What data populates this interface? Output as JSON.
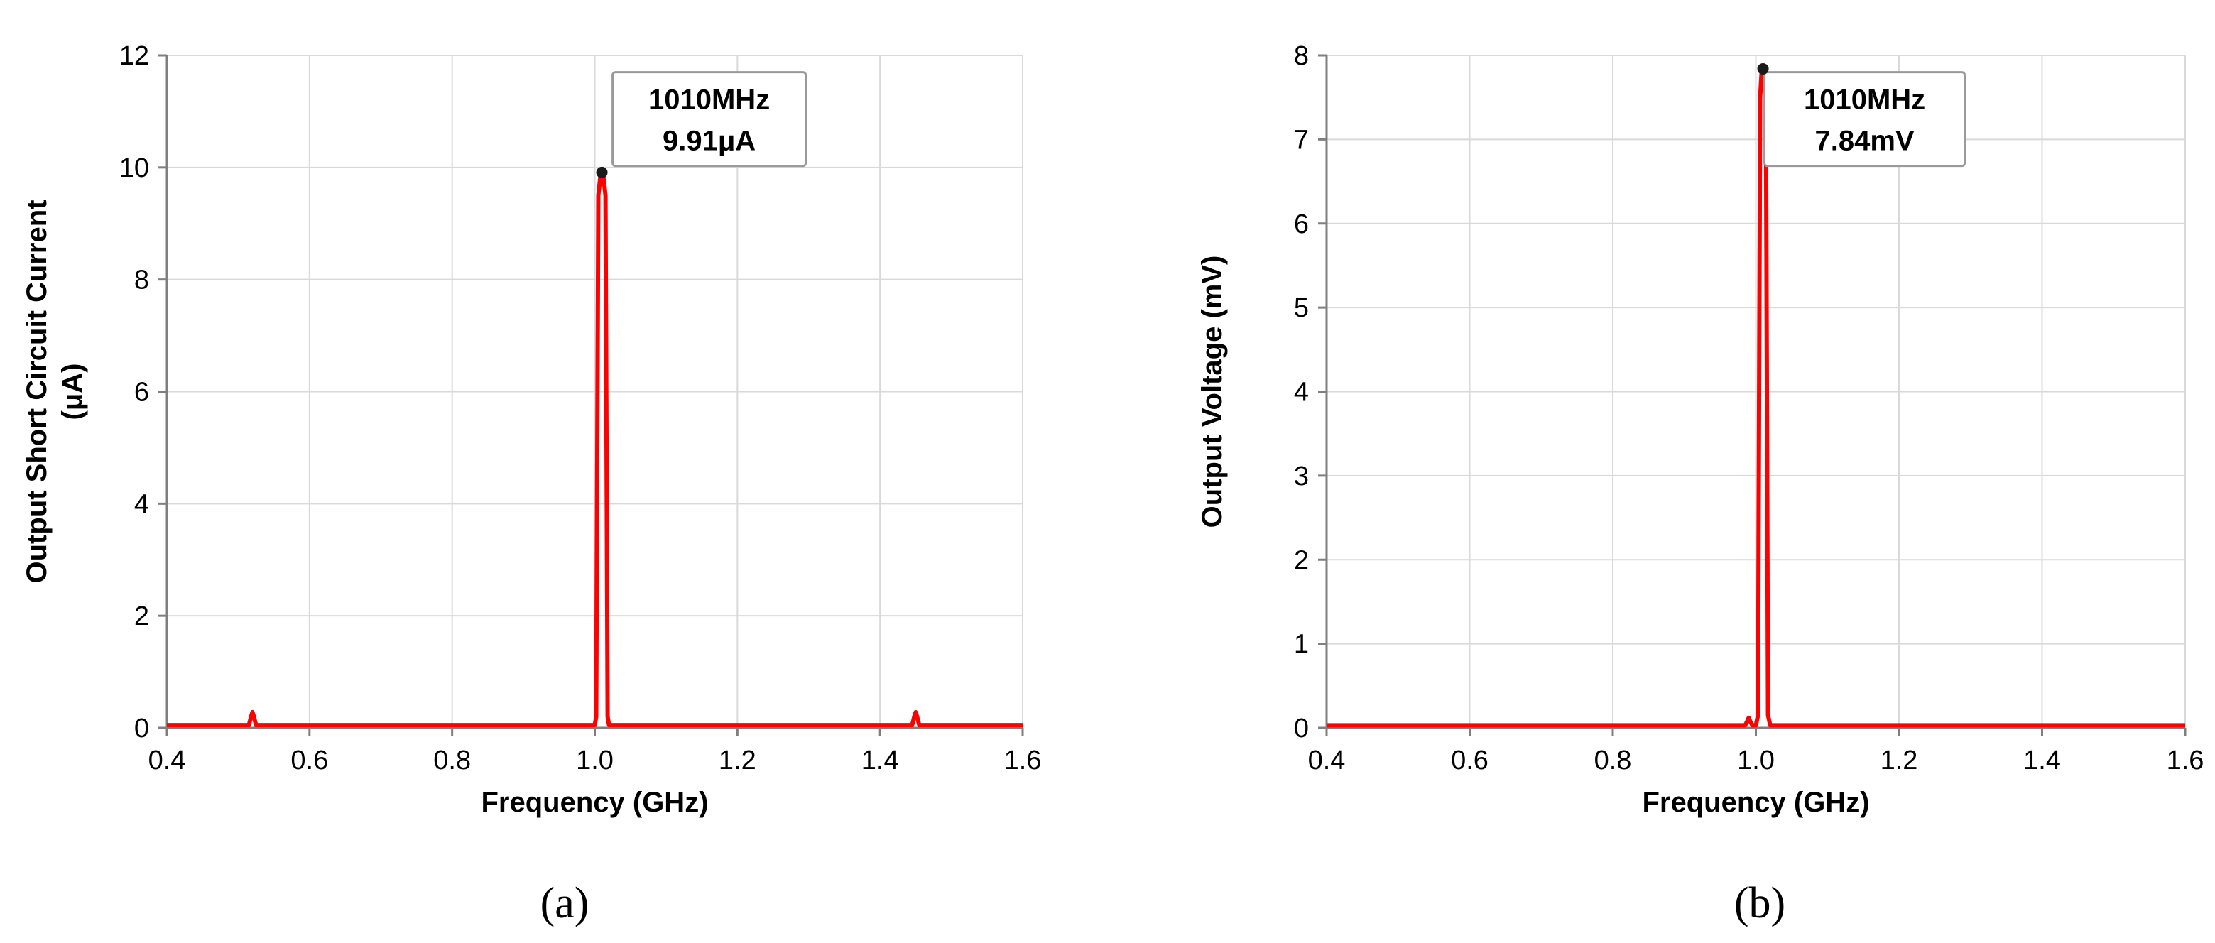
{
  "chart_data": [
    {
      "type": "line",
      "panel_label": "(a)",
      "xlabel": "Frequency (GHz)",
      "ylabel_lines": [
        "Output Short Circuit Current",
        "(μA)"
      ],
      "xlim": [
        0.4,
        1.6
      ],
      "ylim": [
        0,
        12
      ],
      "xticks": [
        0.4,
        0.6,
        0.8,
        1.0,
        1.2,
        1.4,
        1.6
      ],
      "xtick_labels": [
        "0.4",
        "0.6",
        "0.8",
        "1.0",
        "1.2",
        "1.4",
        "1.6"
      ],
      "yticks": [
        0,
        2,
        4,
        6,
        8,
        10,
        12
      ],
      "ytick_labels": [
        "0",
        "2",
        "4",
        "6",
        "8",
        "10",
        "12"
      ],
      "grid": true,
      "series_color": "#ff0000",
      "series": [
        {
          "x": [
            0.4,
            0.515,
            0.518,
            0.52,
            0.522,
            0.525,
            1.0,
            1.002,
            1.005,
            1.008,
            1.01,
            1.012,
            1.015,
            1.018,
            1.02,
            1.445,
            1.448,
            1.45,
            1.452,
            1.455,
            1.6
          ],
          "y": [
            0.05,
            0.05,
            0.2,
            0.28,
            0.2,
            0.05,
            0.05,
            0.2,
            9.5,
            9.85,
            9.91,
            9.85,
            9.5,
            0.2,
            0.05,
            0.05,
            0.2,
            0.28,
            0.2,
            0.05,
            0.05
          ]
        }
      ],
      "annotation": {
        "x": 1.01,
        "y": 9.91,
        "lines": [
          "1010MHz",
          "9.91μA"
        ],
        "box_x": 1.025,
        "box_top": 11.7,
        "box_bottom": 9.9
      }
    },
    {
      "type": "line",
      "panel_label": "(b)",
      "xlabel": "Frequency (GHz)",
      "ylabel_lines": [
        "Output Voltage (mV)"
      ],
      "xlim": [
        0.4,
        1.6
      ],
      "ylim": [
        0,
        8
      ],
      "xticks": [
        0.4,
        0.6,
        0.8,
        1.0,
        1.2,
        1.4,
        1.6
      ],
      "xtick_labels": [
        "0.4",
        "0.6",
        "0.8",
        "1.0",
        "1.2",
        "1.4",
        "1.6"
      ],
      "yticks": [
        0,
        1,
        2,
        3,
        4,
        5,
        6,
        7,
        8
      ],
      "ytick_labels": [
        "0",
        "1",
        "2",
        "3",
        "4",
        "5",
        "6",
        "7",
        "8"
      ],
      "grid": true,
      "series_color": "#ff0000",
      "series": [
        {
          "x": [
            0.4,
            0.985,
            0.988,
            0.99,
            0.992,
            0.995,
            1.0,
            1.003,
            1.006,
            1.008,
            1.01,
            1.012,
            1.014,
            1.017,
            1.02,
            1.6
          ],
          "y": [
            0.03,
            0.03,
            0.08,
            0.12,
            0.08,
            0.03,
            0.03,
            0.15,
            7.5,
            7.8,
            7.84,
            7.8,
            7.5,
            0.15,
            0.03,
            0.03
          ]
        }
      ],
      "annotation": {
        "x": 1.01,
        "y": 7.84,
        "lines": [
          "1010MHz",
          "7.84mV"
        ],
        "box_x": 1.012,
        "box_top": 7.8,
        "box_bottom": 6.68
      }
    }
  ]
}
